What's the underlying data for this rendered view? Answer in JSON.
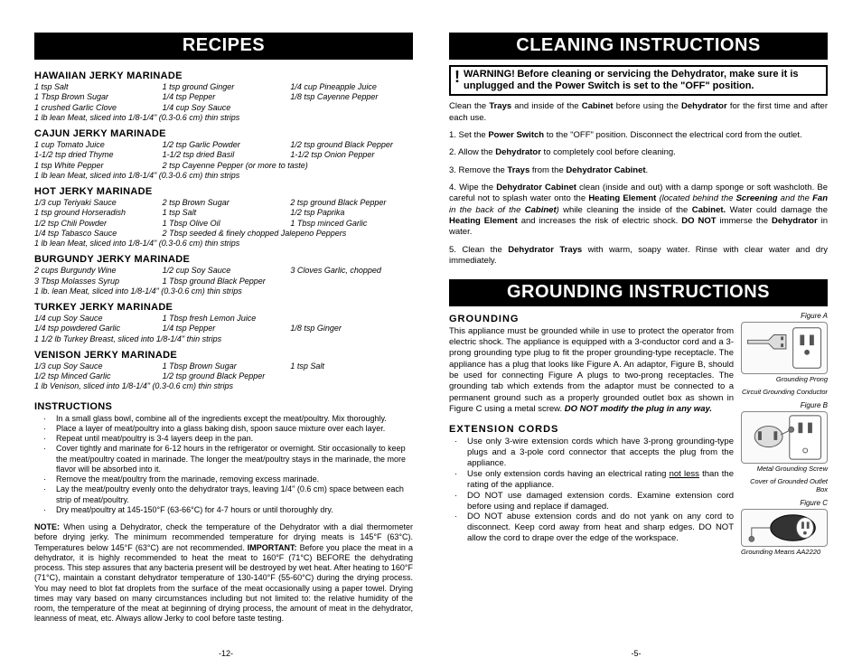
{
  "left": {
    "banner": "RECIPES",
    "recipes": [
      {
        "title": "HAWAIIAN JERKY MARINADE",
        "rows": [
          [
            "1 tsp Salt",
            "1 tsp ground Ginger",
            "1/4 cup Pineapple Juice"
          ],
          [
            "1 Tbsp Brown Sugar",
            "1/4 tsp Pepper",
            "1/8 tsp Cayenne Pepper"
          ],
          [
            "1 crushed Garlic Clove",
            "1/4 cup Soy Sauce",
            ""
          ],
          [
            {
              "span": 3,
              "text": "1 lb lean Meat, sliced into 1/8-1/4\" (0.3-0.6 cm) thin strips"
            }
          ]
        ]
      },
      {
        "title": "CAJUN JERKY MARINADE",
        "rows": [
          [
            "1 cup Tomato Juice",
            "1/2 tsp Garlic Powder",
            "1/2 tsp ground Black Pepper"
          ],
          [
            "1-1/2 tsp dried Thyme",
            "1-1/2 tsp dried Basil",
            "1-1/2 tsp Onion Pepper"
          ],
          [
            "1 tsp White Pepper",
            {
              "span": 2,
              "text": "2 tsp Cayenne Pepper (or more to taste)"
            }
          ],
          [
            {
              "span": 3,
              "text": "1 lb lean Meat, sliced into 1/8-1/4\" (0.3-0.6 cm) thin strips"
            }
          ]
        ]
      },
      {
        "title": "HOT JERKY MARINADE",
        "rows": [
          [
            "1/3 cup Teriyaki Sauce",
            "2 tsp Brown Sugar",
            "2 tsp ground Black Pepper"
          ],
          [
            "1 tsp ground Horseradish",
            "1 tsp Salt",
            "1/2 tsp Paprika"
          ],
          [
            "1/2 tsp Chili Powder",
            "1 Tbsp Olive Oil",
            "1 Tbsp minced Garlic"
          ],
          [
            "1/4 tsp Tabasco Sauce",
            {
              "span": 2,
              "text": "2 Tbsp seeded & finely chopped Jalepeno Peppers"
            }
          ],
          [
            {
              "span": 3,
              "text": "1 lb lean Meat, sliced into 1/8-1/4\" (0.3-0.6 cm) thin strips"
            }
          ]
        ]
      },
      {
        "title": "BURGUNDY JERKY MARINADE",
        "rows": [
          [
            "2 cups Burgundy Wine",
            "1/2 cup Soy Sauce",
            "3 Cloves Garlic, chopped"
          ],
          [
            "3 Tbsp Molasses Syrup",
            "1 Tbsp ground Black Pepper",
            ""
          ],
          [
            {
              "span": 3,
              "text": "1 lb. lean Meat, sliced into 1/8-1/4\" (0.3-0.6 cm) thin strips"
            }
          ]
        ]
      },
      {
        "title": "TURKEY JERKY MARINADE",
        "rows": [
          [
            "1/4 cup Soy Sauce",
            "1 Tbsp fresh Lemon Juice",
            ""
          ],
          [
            "1/4 tsp powdered Garlic",
            "1/4 tsp Pepper",
            "1/8 tsp Ginger"
          ],
          [
            {
              "span": 3,
              "text": "1 1/2 lb Turkey Breast, sliced into 1/8-1/4\" thin strips"
            }
          ]
        ]
      },
      {
        "title": "VENISON JERKY MARINADE",
        "rows": [
          [
            "1/3 cup Soy Sauce",
            "1 Tbsp Brown Sugar",
            "1 tsp Salt"
          ],
          [
            "1/2 tsp Minced Garlic",
            "1/2 tsp ground Black Pepper",
            ""
          ],
          [
            {
              "span": 3,
              "text": "1 lb Venison, sliced into 1/8-1/4\" (0.3-0.6 cm) thin strips"
            }
          ]
        ]
      }
    ],
    "instructions_title": "INSTRUCTIONS",
    "instructions": [
      "In a small glass bowl, combine all of the ingredients except the meat/poultry.  Mix thoroughly.",
      "Place a layer of meat/poultry  into a glass baking dish, spoon sauce mixture over each layer.",
      "Repeat until meat/poultry is 3-4 layers deep in the pan.",
      "Cover tightly and marinate for 6-12 hours in the refrigerator or overnight.  Stir occasionally to keep the meat/poultry coated in marinade.  The longer the meat/poultry stays in the marinade, the more flavor will be absorbed into it.",
      "Remove the meat/poultry from the marinade, removing excess marinade.",
      "Lay the meat/poultry evenly onto the dehydrator trays, leaving 1/4\" (0.6 cm) space between each strip of meat/poultry.",
      "Dry meat/poultry at 145-150°F (63-66°C) for 4-7 hours or until thoroughly dry."
    ],
    "note_html": "<b>NOTE:</b> When using a Dehydrator, check the temperature of the Dehydrator with a dial thermometer before drying jerky.  The minimum recommended temperature for drying meats is 145°F (63°C).  Temperatures below 145°F (63°C) are not recommended.  <b>IMPORTANT:</b>  Before you place the meat in a dehydrator, it is highly recommended  to heat the meat to 160°F (71°C) BEFORE the dehydrating process.  This step assures that any bacteria present will be destroyed by wet heat.  After heating to 160°F (71°C), maintain a constant dehydrator temperature of 130-140°F (55-60°C) during the drying process. You may need to blot fat droplets from the surface of the meat occasionally using a paper towel. Drying times may vary based on many circumstances including but not limited to: the relative humidity of the room, the temperature of the meat at beginning of drying process, the amount of meat in the dehydrator, leanness of meat, etc. Always allow Jerky to cool before taste testing.",
    "page": "-12-"
  },
  "right": {
    "banner1": "CLEANING INSTRUCTIONS",
    "warning_label": "WARNING!",
    "warning_text": "Before cleaning or servicing the Dehydrator, make sure it is unplugged and the Power Switch is set to the \"OFF\" position.",
    "clean_intro": "Clean the <b>Trays</b> and inside of the <b>Cabinet</b> before using the <b>Dehydrator</b> for the first time and after each use.",
    "clean_steps": [
      "1.  Set the <b>Power Switch</b> to the \"OFF\" position.  Disconnect the electrical cord  from the outlet.",
      "2.  Allow the <b>Dehydrator</b> to completely cool before cleaning.",
      "3.  Remove the <b>Trays</b> from the <b>Dehydrator Cabinet</b>.",
      "4.  Wipe the <b>Dehydrator Cabinet</b> clean (inside and out) with a damp sponge or soft washcloth.  Be careful not to splash water onto the <b>Heating Element</b> <i>(located behind the <b>Screening</b> and the <b>Fan</b> in the back of the <b>Cabinet</b>)</i> while cleaning the inside of the <b>Cabinet.</b>  Water could damage the <b>Heating Element</b> and increases the risk of electric shock.  <b>DO NOT</b> immerse the <b>Dehydrator</b> in water.",
      "5.  Clean the <b>Dehydrator Trays</b> with warm, soapy water.  Rinse with clear water and dry immediately."
    ],
    "banner2": "GROUNDING INSTRUCTIONS",
    "ground_title": "GROUNDING",
    "ground_text": "This appliance must be grounded while in use to protect the operator from electric shock.  The appliance is equipped with a 3-conductor cord and a 3-prong grounding type plug to fit the proper grounding-type receptacle. The appliance has a plug that looks like Figure A.  An adaptor, Figure B, should be used for connecting Figure A plugs to two-prong receptacles.  The grounding tab which extends from the adaptor must be connected to a permanent ground such as a properly grounded outlet box as shown in Figure C using a metal screw.  <b><i>DO NOT modify the plug in any way.</i></b>",
    "ext_title": "EXTENSION CORDS",
    "ext_bullets": [
      "Use only 3-wire extension cords which have 3-prong grounding-type plugs and a 3-pole cord connector that accepts the plug from the appliance.",
      "Use only extension cords having an electrical rating <u>not less</u> than the rating of the appliance.",
      "DO NOT use damaged extension cords.  Examine extension cord before using and replace if damaged.",
      "DO NOT abuse extension cords and do not yank on any cord to disconnect.  Keep cord away from heat and sharp edges.  DO NOT  allow the cord to drape over the edge of the workspace."
    ],
    "figA": "Figure A",
    "figA_cap1": "Grounding Prong",
    "figA_cap2": "Circuit Grounding Conductor",
    "figB": "Figure B",
    "figB_cap1": "Metal Grounding Screw",
    "figB_cap2": "Cover of Grounded Outlet Box",
    "figC": "Figure C",
    "figC_cap": "Grounding Means AA2220",
    "page": "-5-"
  }
}
